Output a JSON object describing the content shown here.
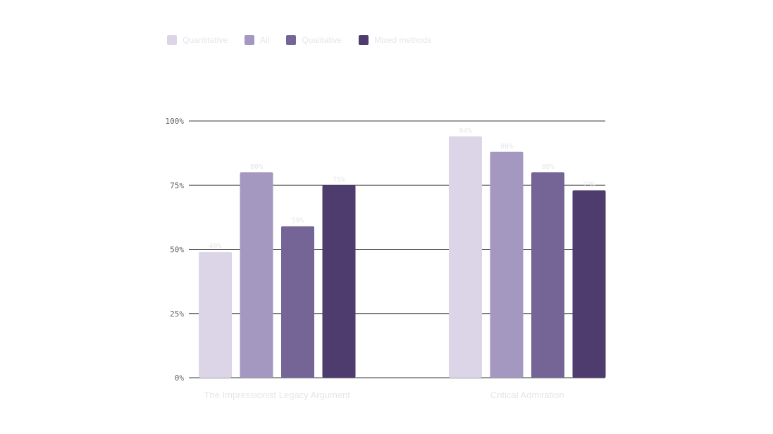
{
  "chart_data": {
    "type": "bar",
    "categories": [
      "The Impressionist Legacy Argument",
      "Critical Admiration"
    ],
    "series": [
      {
        "name": "Quantitative",
        "color": "#dcd5e8",
        "values": [
          49,
          94
        ]
      },
      {
        "name": "All",
        "color": "#a598c0",
        "values": [
          80,
          88
        ]
      },
      {
        "name": "Qualitative",
        "color": "#756597",
        "values": [
          59,
          80
        ]
      },
      {
        "name": "Mixed methods",
        "color": "#4e3c6e",
        "values": [
          75,
          73
        ]
      }
    ],
    "value_labels": [
      [
        "49%",
        "94%"
      ],
      [
        "80%",
        "88%"
      ],
      [
        "59%",
        "80%"
      ],
      [
        "75%",
        "73%"
      ]
    ],
    "y_ticks": [
      {
        "value": 0,
        "label": "0%"
      },
      {
        "value": 25,
        "label": "25%"
      },
      {
        "value": 50,
        "label": "50%"
      },
      {
        "value": 75,
        "label": "75%"
      },
      {
        "value": 100,
        "label": "100%"
      }
    ],
    "ylim": [
      0,
      100
    ],
    "grid": true,
    "legend_position": "top-left",
    "colors": {
      "gridline": "#3a3a3a",
      "axis_text": "#666666",
      "faint_text": "#e6e6ea"
    }
  }
}
